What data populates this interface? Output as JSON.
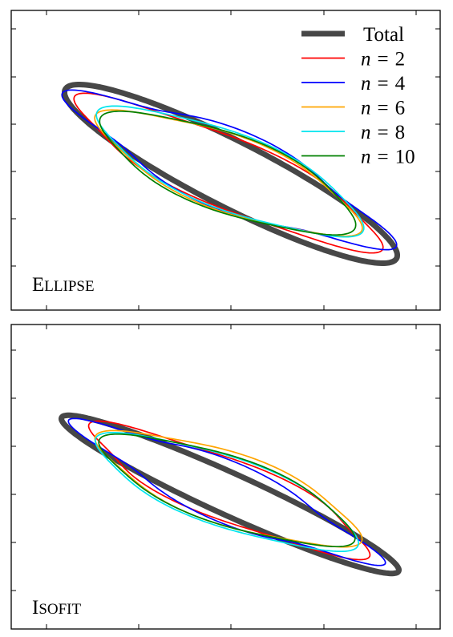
{
  "chart_data": [
    {
      "type": "line",
      "panel_label": "Ellipse",
      "legend": [
        {
          "name": "Total",
          "color": "#474747"
        },
        {
          "name": "n = 2",
          "color": "#ff0000"
        },
        {
          "name": "n = 4",
          "color": "#0000ff"
        },
        {
          "name": "n = 6",
          "color": "#ffa500"
        },
        {
          "name": "n = 8",
          "color": "#00e5ee"
        },
        {
          "name": "n = 10",
          "color": "#008000"
        }
      ],
      "legend_placement": "top-right",
      "grid": false,
      "tick_labels": false,
      "series": [
        {
          "name": "Total",
          "color": "#474747",
          "cx": 288,
          "cy": 217,
          "a": 232,
          "b": 41,
          "angle": 27,
          "bump": 0,
          "phase": 0
        },
        {
          "name": "n = 2",
          "color": "#ff0000",
          "cx": 285,
          "cy": 216,
          "a": 205,
          "b": 43,
          "angle": 24.5,
          "bump": 0.07,
          "phase": 1.2
        },
        {
          "name": "n = 4",
          "color": "#0000ff",
          "cx": 286,
          "cy": 212,
          "a": 205,
          "b": 46,
          "angle": 24,
          "bump": 0.12,
          "phase": 0.3
        },
        {
          "name": "n = 6",
          "color": "#ffa500",
          "cx": 285,
          "cy": 216,
          "a": 172,
          "b": 46,
          "angle": 22,
          "bump": 0.06,
          "phase": 0.7
        },
        {
          "name": "n = 8",
          "color": "#00e5ee",
          "cx": 287,
          "cy": 214,
          "a": 175,
          "b": 47,
          "angle": 22.5,
          "bump": 0.05,
          "phase": 0.9
        },
        {
          "name": "n = 10",
          "color": "#008000",
          "cx": 284,
          "cy": 216,
          "a": 167,
          "b": 48,
          "angle": 21.5,
          "bump": 0.05,
          "phase": 1.0
        }
      ]
    },
    {
      "type": "line",
      "panel_label": "Isofit",
      "legend": [],
      "grid": false,
      "tick_labels": false,
      "series": [
        {
          "name": "Total",
          "color": "#474747",
          "cx": 287,
          "cy": 617,
          "a": 231,
          "b": 26,
          "angle": 24.5,
          "bump": 0,
          "phase": 0
        },
        {
          "name": "n = 2",
          "color": "#ff0000",
          "cx": 286,
          "cy": 612,
          "a": 185,
          "b": 38,
          "angle": 23,
          "bump": 0.08,
          "phase": 1.4
        },
        {
          "name": "n = 4",
          "color": "#0000ff",
          "cx": 283,
          "cy": 614,
          "a": 192,
          "b": 34,
          "angle": 24,
          "bump": 0.13,
          "phase": 0.2
        },
        {
          "name": "n = 6",
          "color": "#ffa500",
          "cx": 285,
          "cy": 610,
          "a": 170,
          "b": 44,
          "angle": 20,
          "bump": 0.06,
          "phase": 0.8
        },
        {
          "name": "n = 8",
          "color": "#00e5ee",
          "cx": 283,
          "cy": 614,
          "a": 171,
          "b": 43,
          "angle": 20.5,
          "bump": 0.05,
          "phase": 1.1
        },
        {
          "name": "n = 10",
          "color": "#008000",
          "cx": 283,
          "cy": 612,
          "a": 165,
          "b": 42,
          "angle": 20,
          "bump": 0.05,
          "phase": 0.95
        }
      ]
    }
  ]
}
